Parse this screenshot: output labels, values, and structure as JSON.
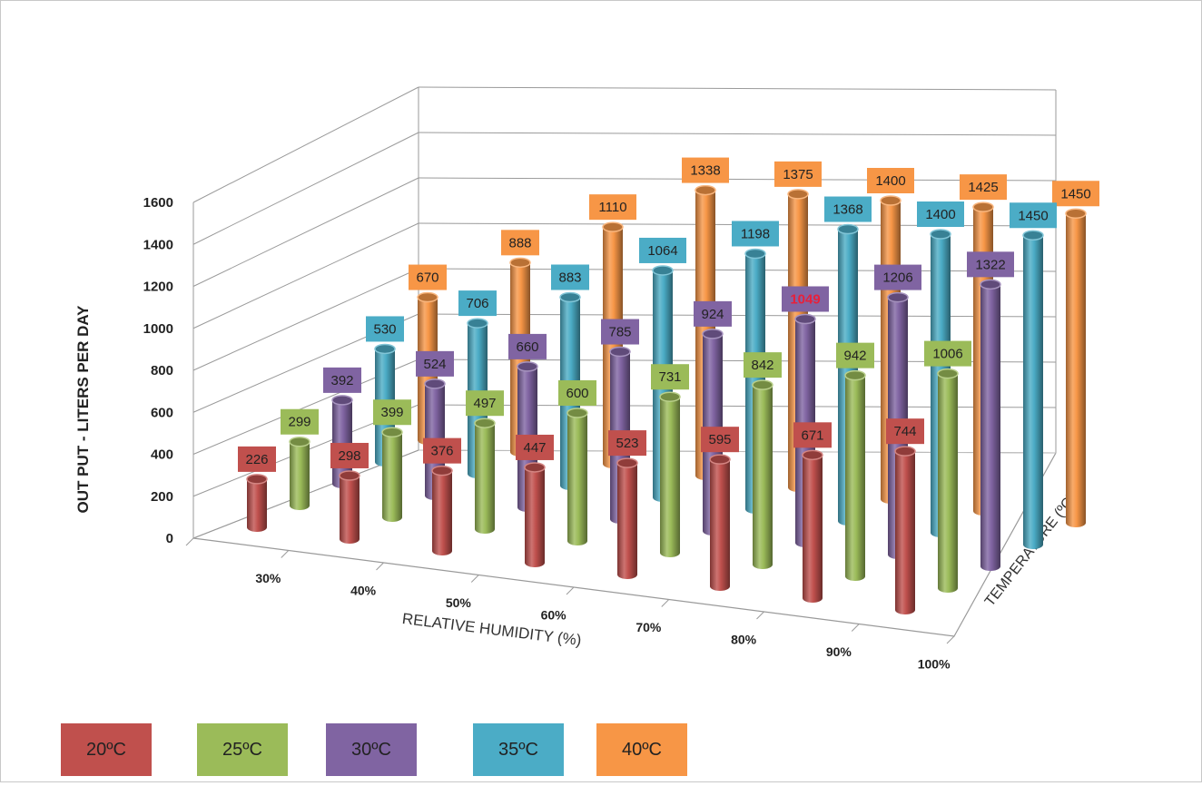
{
  "chart_data": {
    "type": "bar",
    "subtype": "3d-column",
    "title": "",
    "xlabel": "RELATIVE HUMIDITY  (%)",
    "ylabel": "OUT PUT - LITERS PER DAY",
    "zlabel": "TEMPERATURE (ºC)",
    "ylim": [
      0,
      1600
    ],
    "yticks": [
      "0",
      "200",
      "400",
      "600",
      "800",
      "1000",
      "1200",
      "1400",
      "1600"
    ],
    "categories": [
      "30%",
      "40%",
      "50%",
      "60%",
      "70%",
      "80%",
      "90%",
      "100%"
    ],
    "grid": true,
    "legend_position": "bottom",
    "series": [
      {
        "name": "20ºC",
        "color": "#c0504d",
        "label_color": "#c0504d",
        "values": [
          226,
          298,
          376,
          447,
          523,
          595,
          671,
          744
        ]
      },
      {
        "name": "25ºC",
        "color": "#9bbb59",
        "label_color": "#9bbb59",
        "values": [
          299,
          399,
          497,
          600,
          731,
          842,
          942,
          1006
        ]
      },
      {
        "name": "30ºC",
        "color": "#8064a2",
        "label_color": "#8064a2",
        "values": [
          392,
          524,
          660,
          785,
          924,
          1049,
          1206,
          1322
        ]
      },
      {
        "name": "35ºC",
        "color": "#4bacc6",
        "label_color": "#4bacc6",
        "values": [
          530,
          706,
          883,
          1064,
          1198,
          1368,
          1400,
          1450
        ]
      },
      {
        "name": "40ºC",
        "color": "#f79646",
        "label_color": "#f79646",
        "values": [
          670,
          888,
          1110,
          1338,
          1375,
          1400,
          1425,
          1450
        ]
      }
    ],
    "data_labels": [
      [
        "226",
        "298",
        "376",
        "447",
        "523",
        "595",
        "671",
        "744"
      ],
      [
        "299",
        "399",
        "497",
        "600",
        "731",
        "842",
        "942",
        "1006"
      ],
      [
        "392",
        "524",
        "660",
        "785",
        "924",
        "1049",
        "1206",
        "1322"
      ],
      [
        "530",
        "706",
        "883",
        "1064",
        "1198",
        "1368",
        "1400",
        "1450"
      ],
      [
        "670",
        "888",
        "1110",
        "1338",
        "1375",
        "1400",
        "1425",
        "1450"
      ]
    ]
  },
  "legend": [
    {
      "label": "20ºC",
      "color": "#c0504d"
    },
    {
      "label": "25ºC",
      "color": "#9bbb59"
    },
    {
      "label": "30ºC",
      "color": "#8064a2"
    },
    {
      "label": "35ºC",
      "color": "#4bacc6"
    },
    {
      "label": "40ºC",
      "color": "#f79646"
    }
  ]
}
